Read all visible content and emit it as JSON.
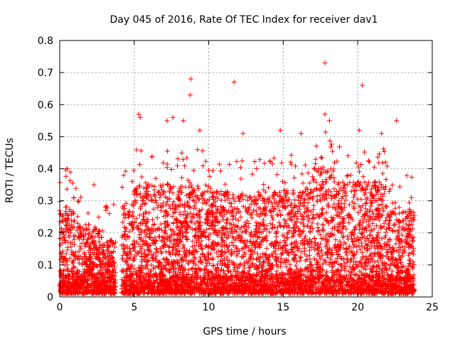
{
  "chart_data": {
    "type": "scatter",
    "title": "Day 045 of 2016, Rate Of TEC Index for receiver dav1",
    "xlabel": "GPS time / hours",
    "ylabel": "ROTI / TECUs",
    "xlim": [
      0,
      25
    ],
    "ylim": [
      0,
      0.8
    ],
    "xticks": [
      0,
      5,
      10,
      15,
      20,
      25
    ],
    "yticks": [
      0,
      0.1,
      0.2,
      0.3,
      0.4,
      0.5,
      0.6,
      0.7,
      0.8
    ],
    "grid": true,
    "marker": "+",
    "color": "#ff0000",
    "series": [
      {
        "name": "ROTI",
        "x_range": [
          0,
          23.8
        ],
        "gap": [
          3.75,
          4.15
        ],
        "notable_points": [
          {
            "x": 0.5,
            "y": 0.4
          },
          {
            "x": 0.7,
            "y": 0.39
          },
          {
            "x": 2.3,
            "y": 0.35
          },
          {
            "x": 5.3,
            "y": 0.57
          },
          {
            "x": 5.4,
            "y": 0.56
          },
          {
            "x": 7.2,
            "y": 0.55
          },
          {
            "x": 7.6,
            "y": 0.56
          },
          {
            "x": 8.3,
            "y": 0.55
          },
          {
            "x": 8.8,
            "y": 0.68
          },
          {
            "x": 8.75,
            "y": 0.63
          },
          {
            "x": 9.4,
            "y": 0.52
          },
          {
            "x": 11.7,
            "y": 0.67
          },
          {
            "x": 12.3,
            "y": 0.51
          },
          {
            "x": 14.8,
            "y": 0.52
          },
          {
            "x": 16.2,
            "y": 0.51
          },
          {
            "x": 17.8,
            "y": 0.73
          },
          {
            "x": 17.8,
            "y": 0.57
          },
          {
            "x": 18.1,
            "y": 0.55
          },
          {
            "x": 20.1,
            "y": 0.52
          },
          {
            "x": 20.3,
            "y": 0.66
          },
          {
            "x": 21.6,
            "y": 0.51
          },
          {
            "x": 22.6,
            "y": 0.55
          },
          {
            "x": 23.6,
            "y": 0.31
          }
        ]
      }
    ]
  }
}
